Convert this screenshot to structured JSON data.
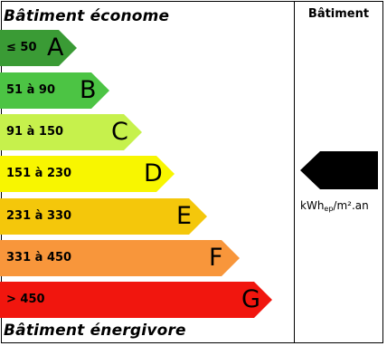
{
  "header": {
    "top_label": "Bâtiment économe",
    "bottom_label": "Bâtiment énergivore",
    "column_title": "Bâtiment"
  },
  "classes": [
    {
      "range": "≤ 50",
      "letter": "A",
      "color": "#3a9b35"
    },
    {
      "range": "51 à 90",
      "letter": "B",
      "color": "#4cc444"
    },
    {
      "range": "91 à 150",
      "letter": "C",
      "color": "#c6f14c"
    },
    {
      "range": "151 à 230",
      "letter": "D",
      "color": "#f8f600"
    },
    {
      "range": "231 à 330",
      "letter": "E",
      "color": "#f4c70b"
    },
    {
      "range": "331 à 450",
      "letter": "F",
      "color": "#f8963b"
    },
    {
      "range": "> 450",
      "letter": "G",
      "color": "#f1160e"
    }
  ],
  "building": {
    "unit_prefix": "kWh",
    "unit_sub": "ep",
    "unit_suffix": "/m².an",
    "marker_color": "#000000"
  }
}
